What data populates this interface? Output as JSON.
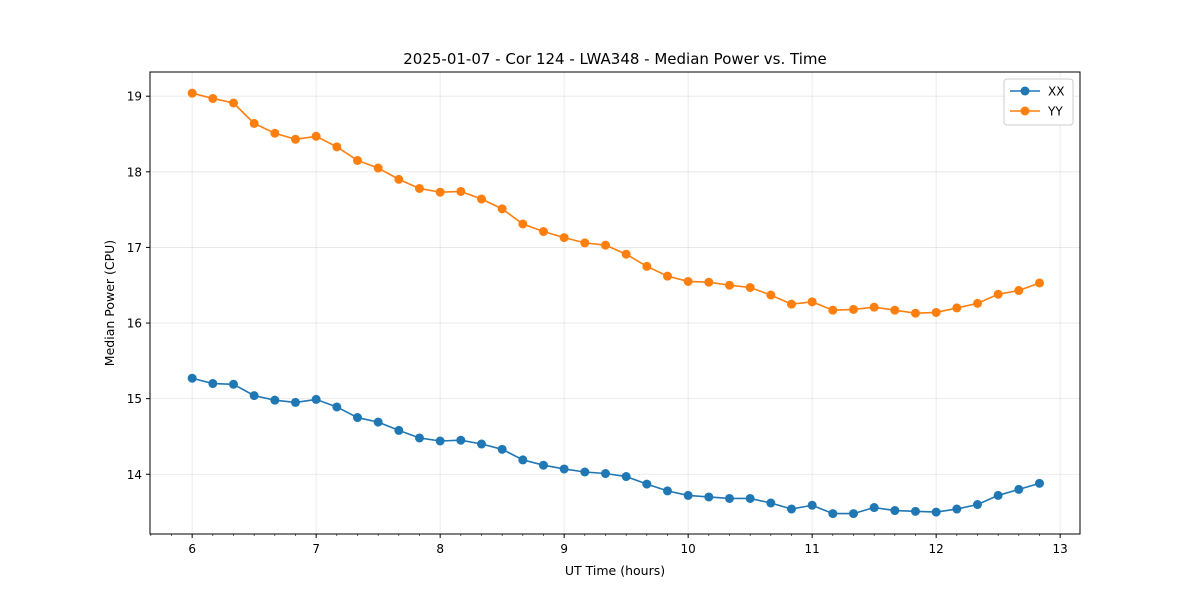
{
  "chart_data": {
    "type": "line",
    "title": "2025-01-07 - Cor 124 - LWA348 - Median Power vs. Time",
    "xlabel": "UT Time (hours)",
    "ylabel": "Median Power (CPU)",
    "xlim": [
      5.66,
      13.16
    ],
    "ylim": [
      13.21,
      19.32
    ],
    "xticks": [
      "6",
      "7",
      "8",
      "9",
      "10",
      "11",
      "12",
      "13"
    ],
    "yticks": [
      "14",
      "15",
      "16",
      "17",
      "18",
      "19"
    ],
    "grid": true,
    "legend_position": "top-right",
    "x": [
      6.0,
      6.1667,
      6.3333,
      6.5,
      6.6667,
      6.8333,
      7.0,
      7.1667,
      7.3333,
      7.5,
      7.6667,
      7.8333,
      8.0,
      8.1667,
      8.3333,
      8.5,
      8.6667,
      8.8333,
      9.0,
      9.1667,
      9.3333,
      9.5,
      9.6667,
      9.8333,
      10.0,
      10.1667,
      10.3333,
      10.5,
      10.6667,
      10.8333,
      11.0,
      11.1667,
      11.3333,
      11.5,
      11.6667,
      11.8333,
      12.0,
      12.1667,
      12.3333,
      12.5,
      12.6667,
      12.8333
    ],
    "series": [
      {
        "name": "XX",
        "color": "#1f77b4",
        "values": [
          15.27,
          15.2,
          15.19,
          15.04,
          14.98,
          14.95,
          14.99,
          14.89,
          14.75,
          14.69,
          14.58,
          14.48,
          14.44,
          14.45,
          14.4,
          14.33,
          14.19,
          14.12,
          14.07,
          14.03,
          14.01,
          13.97,
          13.87,
          13.78,
          13.72,
          13.7,
          13.68,
          13.68,
          13.62,
          13.54,
          13.59,
          13.48,
          13.48,
          13.56,
          13.52,
          13.51,
          13.5,
          13.54,
          13.6,
          13.72,
          13.8,
          13.88
        ]
      },
      {
        "name": "YY",
        "color": "#ff7f0e",
        "values": [
          19.04,
          18.97,
          18.91,
          18.64,
          18.51,
          18.43,
          18.47,
          18.33,
          18.15,
          18.05,
          17.9,
          17.78,
          17.73,
          17.74,
          17.64,
          17.51,
          17.31,
          17.21,
          17.13,
          17.06,
          17.03,
          16.91,
          16.75,
          16.62,
          16.55,
          16.54,
          16.5,
          16.47,
          16.37,
          16.25,
          16.28,
          16.17,
          16.18,
          16.21,
          16.17,
          16.13,
          16.14,
          16.2,
          16.26,
          16.38,
          16.43,
          16.53
        ]
      }
    ]
  }
}
